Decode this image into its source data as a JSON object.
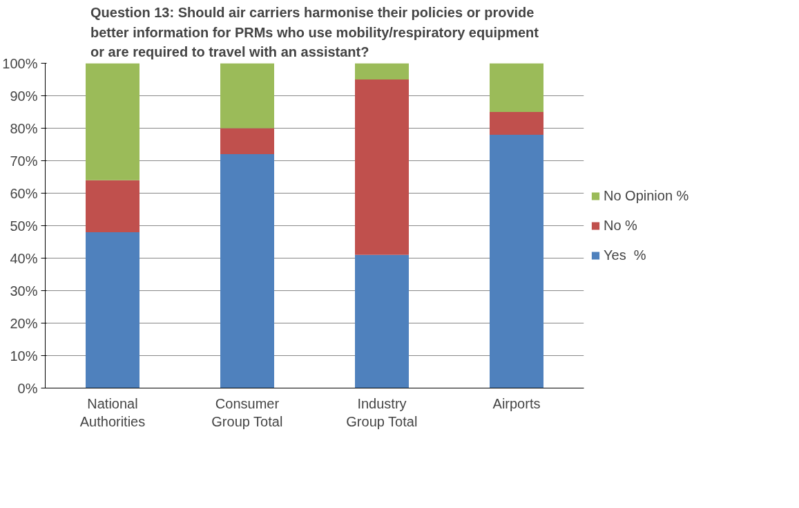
{
  "chart_data": {
    "type": "bar",
    "stacked": true,
    "title": "Question 13: Should air carriers harmonise their policies or provide\nbetter information for PRMs who use mobility/respiratory equipment\nor are required to travel with an assistant?",
    "categories": [
      "National\nAuthorities",
      "Consumer\nGroup Total",
      "Industry\nGroup Total",
      "Airports"
    ],
    "series": [
      {
        "name": "Yes  %",
        "color": "#4f81bd",
        "values": [
          48,
          72,
          41,
          78
        ]
      },
      {
        "name": "No %",
        "color": "#c0504d",
        "values": [
          16,
          8,
          54,
          7
        ]
      },
      {
        "name": "No Opinion %",
        "color": "#9bbb59",
        "values": [
          36,
          20,
          5,
          15
        ]
      }
    ],
    "ylim": [
      0,
      100
    ],
    "yticks": [
      {
        "value": 0,
        "label": "0%"
      },
      {
        "value": 10,
        "label": "10%"
      },
      {
        "value": 20,
        "label": "20%"
      },
      {
        "value": 30,
        "label": "30%"
      },
      {
        "value": 40,
        "label": "40%"
      },
      {
        "value": 50,
        "label": "50%"
      },
      {
        "value": 60,
        "label": "60%"
      },
      {
        "value": 70,
        "label": "70%"
      },
      {
        "value": 80,
        "label": "80%"
      },
      {
        "value": 90,
        "label": "90%"
      },
      {
        "value": 100,
        "label": "100%"
      }
    ],
    "grid": "y",
    "legend": "right"
  }
}
